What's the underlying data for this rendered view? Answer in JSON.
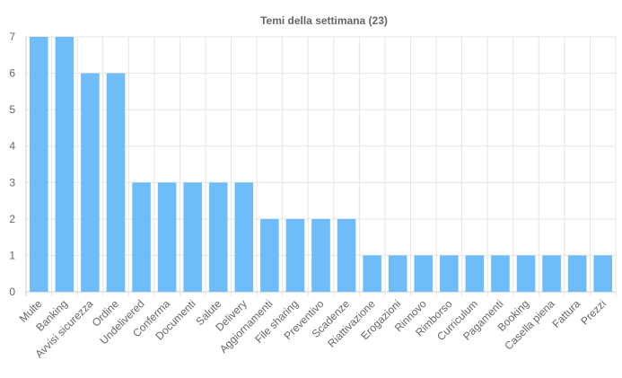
{
  "chart_data": {
    "type": "bar",
    "title": "Temi della settimana (23)",
    "xlabel": "",
    "ylabel": "",
    "ylim": [
      0,
      7
    ],
    "yticks": [
      "0",
      "1",
      "2",
      "3",
      "4",
      "5",
      "6",
      "7"
    ],
    "grid": true,
    "legend": "none",
    "bar_color": "#6ebcf8",
    "categories": [
      "Multe",
      "Banking",
      "Avvisi sicurezza",
      "Ordine",
      "Undelivered",
      "Conferma",
      "Documenti",
      "Salute",
      "Delivery",
      "Aggiornamenti",
      "File sharing",
      "Preventivo",
      "Scadenze",
      "Riattivazione",
      "Erogazioni",
      "Rinnovo",
      "Rimborso",
      "Curriculum",
      "Pagamenti",
      "Booking",
      "Casella piena",
      "Fattura",
      "Prezzi"
    ],
    "values": [
      7,
      7,
      6,
      6,
      3,
      3,
      3,
      3,
      3,
      2,
      2,
      2,
      2,
      1,
      1,
      1,
      1,
      1,
      1,
      1,
      1,
      1,
      1
    ]
  }
}
